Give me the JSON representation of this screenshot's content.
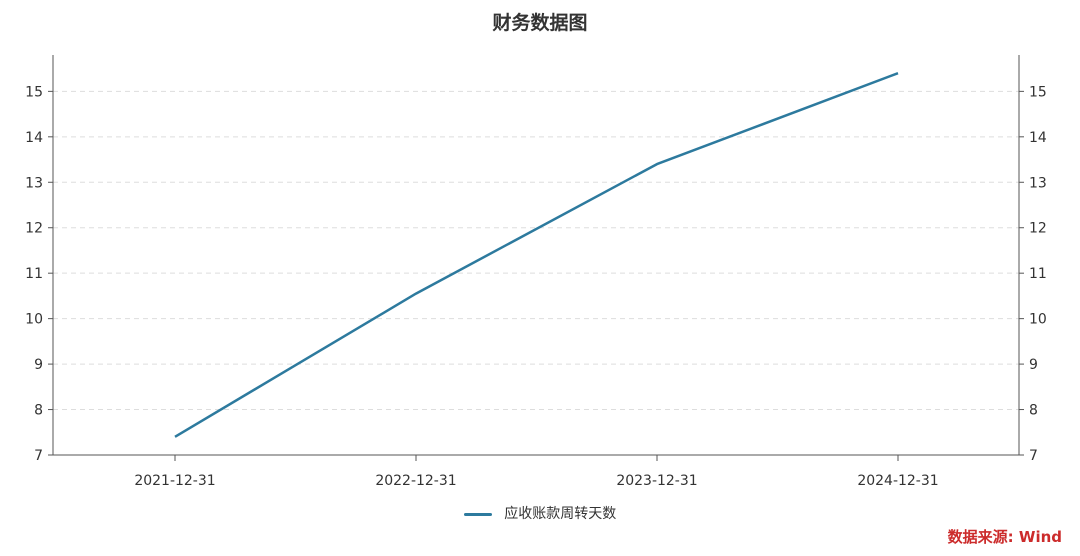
{
  "chart_data": {
    "type": "line",
    "title": "财务数据图",
    "categories": [
      "2021-12-31",
      "2022-12-31",
      "2023-12-31",
      "2024-12-31"
    ],
    "series": [
      {
        "name": "应收账款周转天数",
        "values": [
          7.4,
          10.55,
          13.4,
          15.4
        ],
        "color": "#2d7a9e"
      }
    ],
    "ylim": [
      7,
      15.8
    ],
    "yticks": [
      7,
      8,
      9,
      10,
      11,
      12,
      13,
      14,
      15
    ],
    "grid": true,
    "legend_position": "bottom"
  },
  "source_text": "数据来源: Wind"
}
